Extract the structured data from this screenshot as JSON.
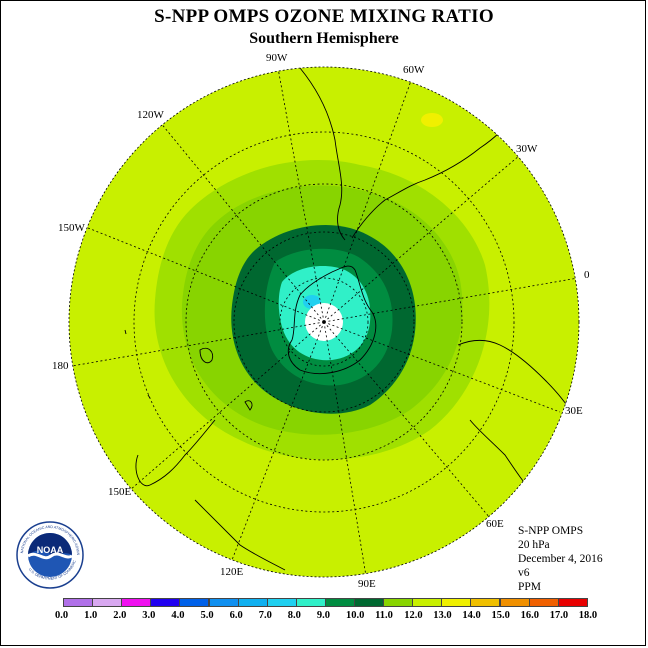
{
  "header": {
    "title": "S-NPP OMPS OZONE MIXING RATIO",
    "subtitle": "Southern Hemisphere"
  },
  "map": {
    "projection": "polar stereographic (south pole)",
    "pole_label": "Southern Hemisphere",
    "longitude_labels": {
      "l90w": "90W",
      "l60w": "60W",
      "l30w": "30W",
      "l0": "0",
      "l30e": "30E",
      "l60e": "60E",
      "l90e": "90E",
      "l120e": "120E",
      "l150e": "150E",
      "l180": "180",
      "l150w": "150W",
      "l120w": "120W"
    },
    "field_colors": {
      "background_band": "#c8f000",
      "band_11_12": "#a0e000",
      "band_10_11": "#88d400",
      "band_9_10": "#006830",
      "band_8_9": "#008c40",
      "band_7_8": "#30f0c8",
      "band_6_7": "#20d0f0",
      "center_white": "#ffffff",
      "yellow_patch": "#f0f000"
    }
  },
  "info": {
    "instrument": "S-NPP OMPS",
    "level": "20 hPa",
    "date": "December 4, 2016",
    "version": "v6",
    "units": "PPM"
  },
  "legend": {
    "ticks": [
      "0.0",
      "1.0",
      "2.0",
      "3.0",
      "4.0",
      "5.0",
      "6.0",
      "7.0",
      "8.0",
      "9.0",
      "10.0",
      "11.0",
      "12.0",
      "13.0",
      "14.0",
      "15.0",
      "16.0",
      "17.0",
      "18.0"
    ],
    "colors": [
      "#b070e8",
      "#d8a8f0",
      "#f010f0",
      "#2000f0",
      "#0060e8",
      "#1090f0",
      "#10b0f0",
      "#20d0f0",
      "#30f0c8",
      "#008c40",
      "#006830",
      "#88d400",
      "#c8f000",
      "#f0f000",
      "#f0c000",
      "#f09000",
      "#f06000",
      "#e80000",
      "#a06040"
    ]
  },
  "logo": {
    "text": "NOAA",
    "ring_text": "NATIONAL OCEANIC AND ATMOSPHERIC ADMINISTRATION",
    "ring_text_bottom": "U.S. DEPARTMENT OF COMMERCE"
  }
}
